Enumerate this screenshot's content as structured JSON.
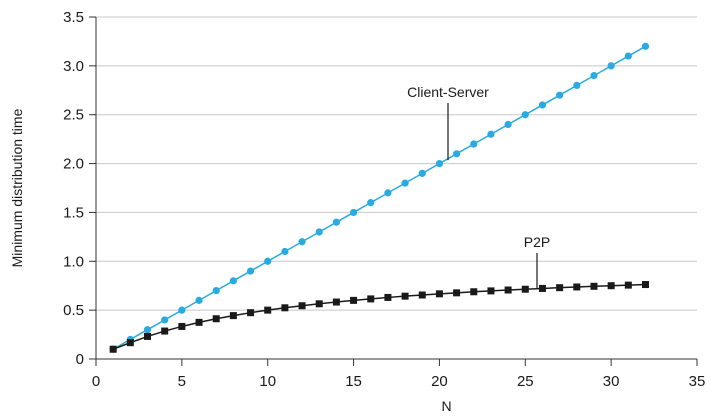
{
  "chart_data": {
    "type": "line",
    "title": "",
    "xlabel": "N",
    "ylabel": "Minimum distribution time",
    "xlim": [
      0,
      35
    ],
    "ylim": [
      0,
      3.5
    ],
    "xticks": [
      0,
      5,
      10,
      15,
      20,
      25,
      30,
      35
    ],
    "yticks": [
      0,
      0.5,
      1.0,
      1.5,
      2.0,
      2.5,
      3.0,
      3.5
    ],
    "xtick_labels": [
      "0",
      "5",
      "10",
      "15",
      "20",
      "25",
      "30",
      "35"
    ],
    "ytick_labels": [
      "0",
      "0.5",
      "1.0",
      "1.5",
      "2.0",
      "2.5",
      "3.0",
      "3.5"
    ],
    "grid": "horizontal",
    "series": [
      {
        "name": "Client-Server",
        "color": "#29abe2",
        "marker": "circle",
        "x": [
          1,
          2,
          3,
          4,
          5,
          6,
          7,
          8,
          9,
          10,
          11,
          12,
          13,
          14,
          15,
          16,
          17,
          18,
          19,
          20,
          21,
          22,
          23,
          24,
          25,
          26,
          27,
          28,
          29,
          30,
          31,
          32
        ],
        "values": [
          0.1,
          0.2,
          0.3,
          0.4,
          0.5,
          0.6,
          0.7,
          0.8,
          0.9,
          1.0,
          1.1,
          1.2,
          1.3,
          1.4,
          1.5,
          1.6,
          1.7,
          1.8,
          1.9,
          2.0,
          2.1,
          2.2,
          2.3,
          2.4,
          2.5,
          2.6,
          2.7,
          2.8,
          2.9,
          3.0,
          3.1,
          3.2
        ]
      },
      {
        "name": "P2P",
        "color": "#1a1a1a",
        "marker": "square",
        "x": [
          1,
          2,
          3,
          4,
          5,
          6,
          7,
          8,
          9,
          10,
          11,
          12,
          13,
          14,
          15,
          16,
          17,
          18,
          19,
          20,
          21,
          22,
          23,
          24,
          25,
          26,
          27,
          28,
          29,
          30,
          31,
          32
        ],
        "values": [
          0.1,
          0.167,
          0.231,
          0.286,
          0.333,
          0.375,
          0.412,
          0.444,
          0.474,
          0.5,
          0.524,
          0.545,
          0.565,
          0.583,
          0.6,
          0.615,
          0.63,
          0.643,
          0.655,
          0.667,
          0.677,
          0.688,
          0.697,
          0.706,
          0.714,
          0.722,
          0.73,
          0.737,
          0.744,
          0.75,
          0.756,
          0.762
        ]
      }
    ],
    "annotations": [
      {
        "text": "Client-Server",
        "series": "Client-Server"
      },
      {
        "text": "P2P",
        "series": "P2P"
      }
    ]
  }
}
